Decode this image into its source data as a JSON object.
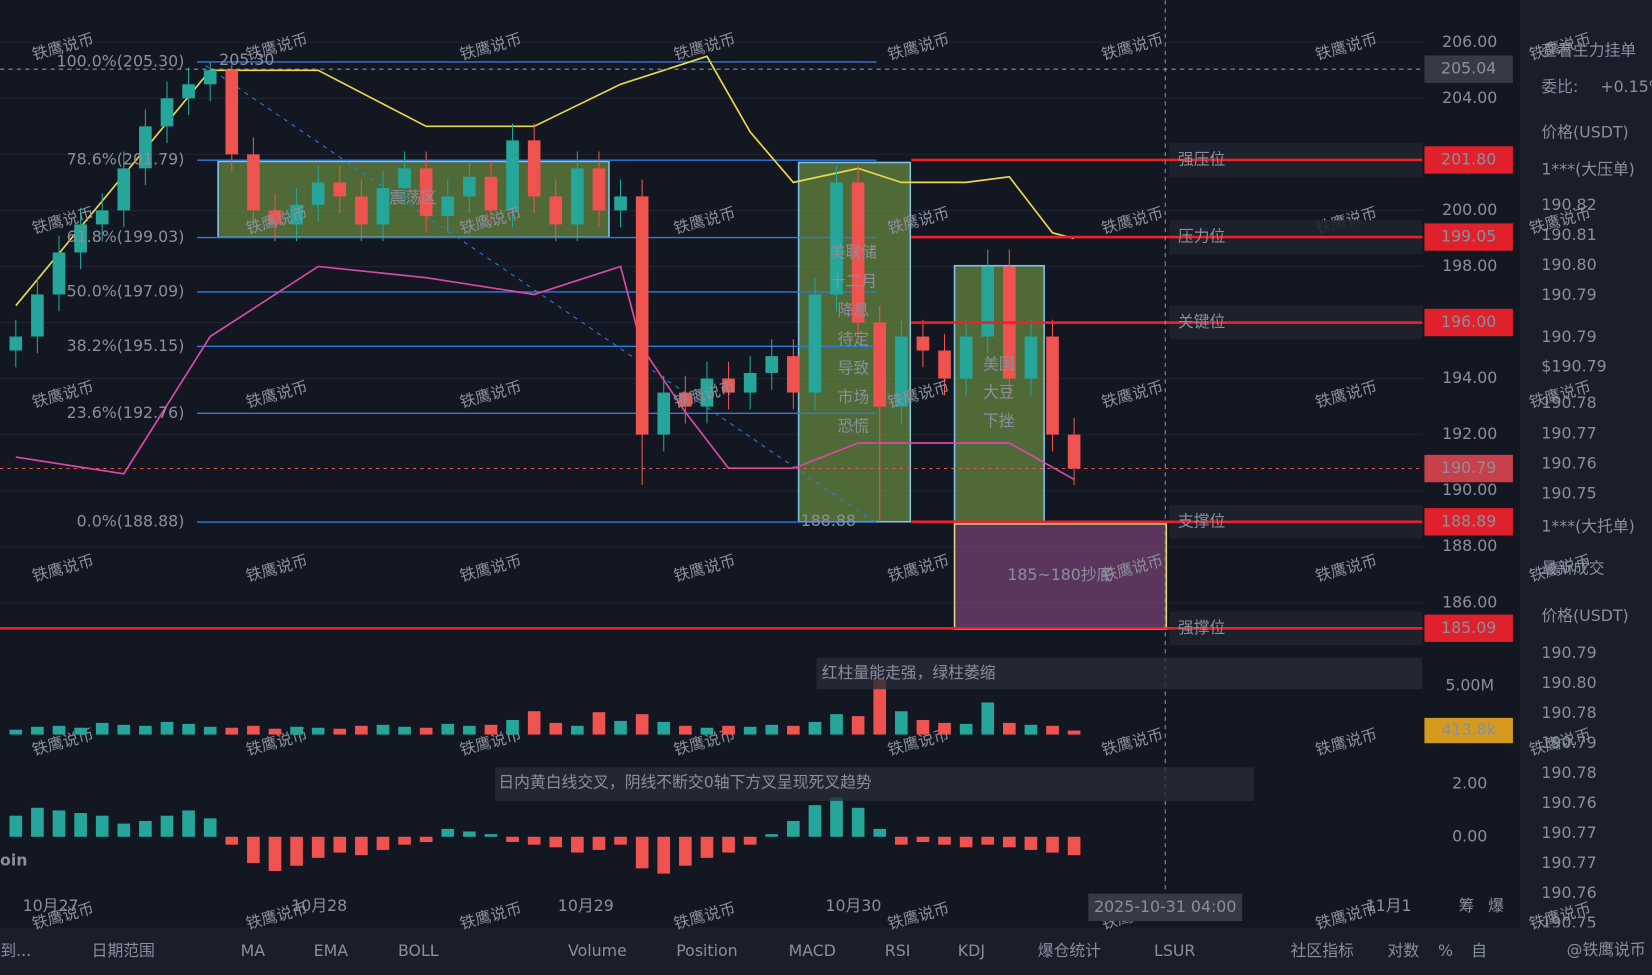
{
  "chart_data": {
    "type": "candlestick",
    "x_labels": [
      "10月27",
      "10月28",
      "10月29",
      "10月30",
      "11月1"
    ],
    "ylim": [
      183.5,
      207.5
    ],
    "yticks": [
      {
        "value": 186,
        "label": "186.00"
      },
      {
        "value": 188,
        "label": "188.00"
      },
      {
        "value": 190,
        "label": "190.00"
      },
      {
        "value": 192,
        "label": "192.00"
      },
      {
        "value": 194,
        "label": "194.00"
      },
      {
        "value": 196,
        "label": "196.00"
      },
      {
        "value": 198,
        "label": "198.00"
      },
      {
        "value": 200,
        "label": "200.00"
      },
      {
        "value": 202,
        "label": "202.00"
      },
      {
        "value": 204,
        "label": "204.00"
      },
      {
        "value": 206,
        "label": "206.00"
      }
    ],
    "up_color": "#26a69a",
    "down_color": "#ef5350",
    "open": [
      195,
      195.5,
      197,
      198.5,
      199.5,
      200,
      201.5,
      203,
      204,
      204.5,
      205,
      202,
      200,
      199.5,
      200.2,
      201,
      200.5,
      199.5,
      200.8,
      201.5,
      199.8,
      200.5,
      201.2,
      200,
      202.5,
      200.5,
      199.5,
      201.5,
      200,
      200.5,
      192,
      193.5,
      193,
      194,
      193.5,
      194.2,
      194.8,
      193.5,
      197,
      201,
      196,
      193,
      195.5,
      195,
      194,
      195.5,
      198,
      194,
      195.5,
      192
    ],
    "high": [
      196.1,
      197.6,
      199.1,
      200.1,
      200.6,
      202.1,
      203.6,
      204.6,
      205.1,
      205.3,
      205.2,
      202.6,
      200.6,
      200.8,
      201.6,
      201.6,
      201.1,
      201.4,
      202.1,
      202.1,
      201.1,
      201.8,
      201.8,
      203.1,
      203.1,
      201.1,
      202.1,
      202.1,
      201.1,
      201.1,
      194.1,
      194.1,
      194.6,
      194.6,
      194.8,
      195.4,
      195.4,
      197.6,
      201.6,
      201.6,
      196.6,
      196.1,
      196.1,
      195.6,
      196.1,
      198.6,
      198.6,
      196.1,
      196.1,
      192.6
    ],
    "low": [
      194.4,
      194.9,
      196.4,
      197.9,
      198.9,
      199.4,
      200.9,
      202.4,
      203.4,
      203.9,
      201.4,
      199.4,
      198.9,
      198.9,
      199.6,
      199.9,
      198.9,
      198.9,
      200.2,
      199.2,
      199.2,
      199.9,
      199.4,
      199.4,
      199.9,
      198.9,
      198.9,
      199.4,
      199.4,
      190.2,
      191.4,
      192.4,
      192.4,
      192.9,
      192.9,
      193.6,
      192.9,
      192.9,
      196.4,
      195.4,
      188.88,
      192.4,
      194.4,
      193.4,
      193.4,
      194.9,
      193.4,
      193.4,
      191.4,
      190.2
    ],
    "close": [
      195.5,
      197,
      198.5,
      199.5,
      200,
      201.5,
      203,
      204,
      204.5,
      205,
      202,
      200,
      199.5,
      200.2,
      201,
      200.5,
      199.5,
      200.8,
      201.5,
      199.8,
      200.5,
      201.2,
      200,
      202.5,
      200.5,
      199.5,
      201.5,
      200,
      200.5,
      192,
      193.5,
      193,
      194,
      193.5,
      194.2,
      194.8,
      193.5,
      197,
      201,
      196,
      193,
      195.5,
      195,
      194,
      195.5,
      198,
      194,
      195.5,
      192,
      190.79
    ],
    "boll_upper": {
      "x": [
        0,
        9,
        14,
        19,
        24,
        28,
        32,
        34,
        36,
        39,
        41,
        44,
        46,
        48,
        49
      ],
      "values": [
        196.6,
        205,
        205,
        203,
        203,
        204.5,
        205.5,
        202.8,
        201,
        201.5,
        201,
        201,
        201.2,
        199.2,
        199
      ],
      "color": "#e8d84a"
    },
    "boll_lower": {
      "x": [
        0,
        5,
        9,
        14,
        19,
        24,
        28,
        29,
        31,
        33,
        36,
        39,
        42,
        46,
        49
      ],
      "values": [
        191.2,
        190.6,
        195.5,
        198,
        197.6,
        197,
        198,
        195.1,
        192.8,
        190.8,
        190.8,
        191.7,
        191.7,
        191.7,
        190.4
      ],
      "color": "#d84aa5"
    },
    "fib_levels": [
      {
        "value": 205.3,
        "label": "100.0%(205.30)"
      },
      {
        "value": 201.79,
        "label": "78.6%(201.79)"
      },
      {
        "value": 199.03,
        "label": "61.8%(199.03)"
      },
      {
        "value": 197.09,
        "label": "50.0%(197.09)"
      },
      {
        "value": 195.15,
        "label": "38.2%(195.15)"
      },
      {
        "value": 192.76,
        "label": "23.6%(192.76)"
      },
      {
        "value": 188.88,
        "label": "0.0%(188.88)"
      }
    ],
    "levels": [
      {
        "name": "强压位",
        "value": 201.8,
        "label": "201.80"
      },
      {
        "name": "压力位",
        "value": 199.05,
        "label": "199.05"
      },
      {
        "name": "关键位",
        "value": 196,
        "label": "196.00"
      },
      {
        "name": "支撑位",
        "value": 188.89,
        "label": "188.89"
      },
      {
        "name": "强撑位",
        "value": 185.09,
        "label": "185.09"
      }
    ],
    "current_price": {
      "value": 190.79,
      "label": "190.79"
    },
    "crosshair": {
      "price": {
        "value": 205.04,
        "label": "205.04"
      },
      "time": "2025-10-31 04:00"
    },
    "annotations": {
      "range_box": "震荡区",
      "fed": [
        "美联储",
        "十二月",
        "降息",
        "待定",
        "导致",
        "市场",
        "恐慌"
      ],
      "soy": [
        "美国",
        "大豆",
        "下挫"
      ],
      "bottom": "185~180抄底",
      "high_mark": "205.30",
      "low_mark": "188.88",
      "volume_note": "红柱量能走强，绿柱萎缩",
      "macd_note": "日内黄白线交叉，阴线不断交0轴下方叉呈现死叉趋势"
    },
    "volume": {
      "ylim": [
        0,
        6500000
      ],
      "yticks": [
        {
          "value": 5000000,
          "label": "5.00M"
        }
      ],
      "marker": {
        "value": 413800,
        "label": "413.8k"
      },
      "values": [
        500000,
        800000,
        900000,
        700000,
        1200000,
        1000000,
        900000,
        1300000,
        1100000,
        800000,
        700000,
        900000,
        600000,
        800000,
        700000,
        600000,
        900000,
        1000000,
        800000,
        700000,
        1100000,
        900000,
        1000000,
        1500000,
        2400000,
        1200000,
        900000,
        2300000,
        1400000,
        2100000,
        1300000,
        900000,
        700000,
        900000,
        800000,
        1000000,
        900000,
        1300000,
        2100000,
        1900000,
        5600000,
        2400000,
        1500000,
        1200000,
        1100000,
        3300000,
        1200000,
        1000000,
        900000,
        413800
      ]
    },
    "macd": {
      "ylim": [
        -2.04,
        2.96
      ],
      "yticks": [
        {
          "value": 0,
          "label": "0.00"
        },
        {
          "value": 2,
          "label": "2.00"
        }
      ],
      "values": [
        0.8,
        1.1,
        1.0,
        0.9,
        0.8,
        0.5,
        0.6,
        0.8,
        1.0,
        0.7,
        -0.3,
        -1.0,
        -1.3,
        -1.1,
        -0.8,
        -0.6,
        -0.7,
        -0.5,
        -0.3,
        -0.2,
        0.3,
        0.2,
        0.1,
        -0.2,
        -0.3,
        -0.4,
        -0.6,
        -0.5,
        -0.3,
        -1.2,
        -1.4,
        -1.1,
        -0.8,
        -0.6,
        -0.3,
        0.1,
        0.6,
        1.2,
        1.5,
        1.1,
        0.3,
        -0.3,
        -0.2,
        -0.3,
        -0.4,
        -0.3,
        -0.4,
        -0.5,
        -0.6,
        -0.7
      ]
    }
  },
  "watermark": "铁鹰说币",
  "coin_label": "oin",
  "side_icons": [
    "筹",
    "爆"
  ],
  "toolbar": [
    {
      "label": "到...",
      "active": false
    },
    {
      "label": "日期范围",
      "active": false
    },
    {
      "label": "MA",
      "active": false
    },
    {
      "label": "EMA",
      "active": false
    },
    {
      "label": "BOLL",
      "active": true
    },
    {
      "label": "Volume",
      "active": true
    },
    {
      "label": "Position",
      "active": false
    },
    {
      "label": "MACD",
      "active": true
    },
    {
      "label": "RSI",
      "active": false
    },
    {
      "label": "KDJ",
      "active": false
    },
    {
      "label": "爆仓统计",
      "active": false
    },
    {
      "label": "LSUR",
      "active": false
    },
    {
      "label": "社区指标",
      "active": false
    },
    {
      "label": "对数",
      "active": false
    },
    {
      "label": "%",
      "active": false
    },
    {
      "label": "自",
      "active": false
    }
  ],
  "footer_handle": "@铁鹰说币",
  "order_book": {
    "title": "查看主力挂单",
    "ratio_label": "委比:",
    "ratio": "+0.15%",
    "price_header": "价格(USDT)",
    "ask_tag": "1***(大压单)",
    "asks": [
      "190.82",
      "190.81",
      "190.80",
      "190.79"
    ],
    "last": "190.79",
    "last_usd": "$190.79",
    "bids": [
      "190.78",
      "190.77",
      "190.76",
      "190.75"
    ],
    "bid_tag": "1***(大托单)"
  },
  "trades": {
    "title": "最新成交",
    "price_header": "价格(USDT)",
    "prices": [
      "190.79",
      "190.80",
      "190.78",
      "190.79",
      "190.78",
      "190.76",
      "190.77",
      "190.77",
      "190.76",
      "190.75"
    ],
    "sides": [
      "sell",
      "buy",
      "sell",
      "buy",
      "buy",
      "sell",
      "buy",
      "buy",
      "buy",
      "buy"
    ]
  }
}
